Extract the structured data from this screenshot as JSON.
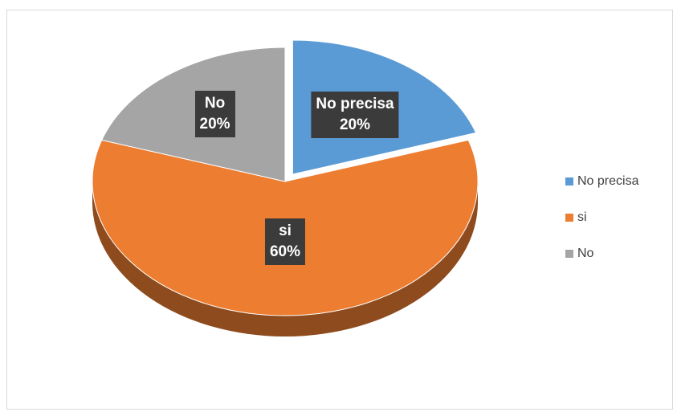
{
  "chart_data": {
    "type": "pie",
    "title": "",
    "three_d": true,
    "exploded_slice": "No precisa",
    "legend_position": "right",
    "slices": [
      {
        "label": "No precisa",
        "value": 20,
        "value_label": "20%",
        "color": "#5b9bd5"
      },
      {
        "label": "si",
        "value": 60,
        "value_label": "60%",
        "color": "#ed7d31"
      },
      {
        "label": "No",
        "value": 20,
        "value_label": "20%",
        "color": "#a5a5a5"
      }
    ]
  }
}
